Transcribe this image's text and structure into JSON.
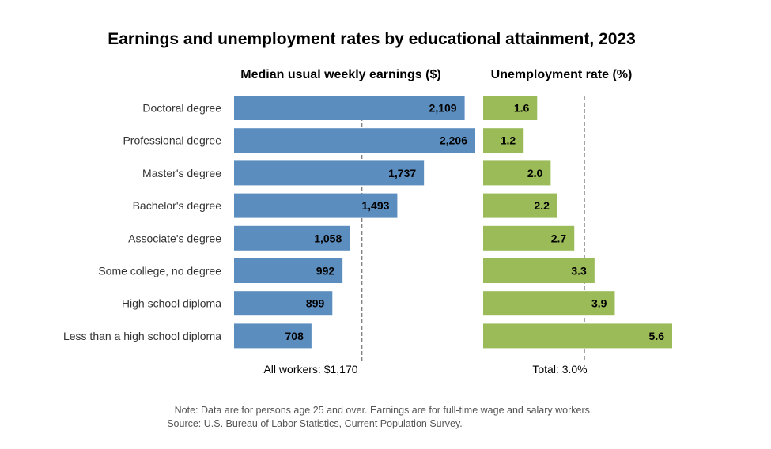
{
  "chart_data": {
    "type": "bar",
    "orientation": "horizontal",
    "title": "Earnings and unemployment rates by educational attainment, 2023",
    "categories": [
      "Doctoral degree",
      "Professional degree",
      "Master's degree",
      "Bachelor's degree",
      "Associate's degree",
      "Some college, no degree",
      "High school diploma",
      "Less than a high school diploma"
    ],
    "panels": [
      {
        "title": "Median usual weekly earnings ($)",
        "values": [
          2109,
          2206,
          1737,
          1493,
          1058,
          992,
          899,
          708
        ],
        "labels": [
          "2,109",
          "2,206",
          "1,737",
          "1,493",
          "1,058",
          "992",
          "899",
          "708"
        ],
        "xlim": [
          0,
          2206
        ],
        "color": "#5b8ebf",
        "reference": {
          "value": 1170,
          "label": "All workers: $1,170"
        }
      },
      {
        "title": "Unemployment rate (%)",
        "values": [
          1.6,
          1.2,
          2.0,
          2.2,
          2.7,
          3.3,
          3.9,
          5.6
        ],
        "labels": [
          "1.6",
          "1.2",
          "2.0",
          "2.2",
          "2.7",
          "3.3",
          "3.9",
          "5.6"
        ],
        "xlim": [
          0,
          5.6
        ],
        "color": "#9bbb59",
        "reference": {
          "value": 3.0,
          "label": "Total: 3.0%"
        }
      }
    ],
    "legend": "none",
    "grid": false
  },
  "notes": [
    "Note: Data are for persons age 25 and over. Earnings are for full-time wage and salary workers.",
    "Source: U.S. Bureau of Labor Statistics, Current Population Survey."
  ]
}
